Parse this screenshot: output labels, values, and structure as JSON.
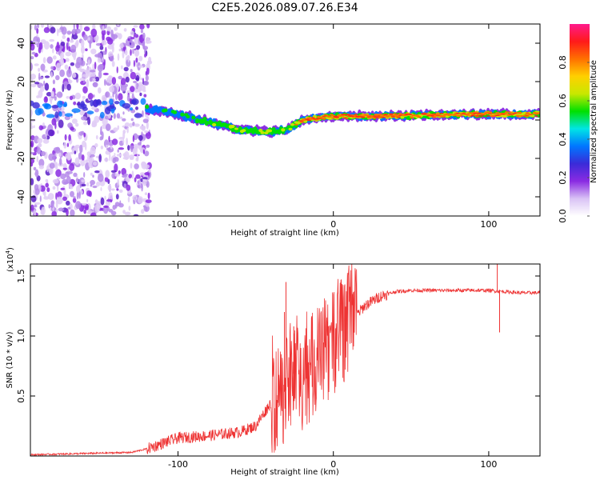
{
  "title": "C2E5.2026.089.07.26.E34",
  "chart_data": [
    {
      "type": "heatmap",
      "name": "spectrogram",
      "xlabel": "Height of straight line (km)",
      "ylabel": "Frequency (Hz)",
      "xlim": [
        -195,
        133
      ],
      "ylim": [
        -50,
        50
      ],
      "xticks": [
        -100,
        0,
        100
      ],
      "yticks": [
        -40,
        -20,
        0,
        20,
        40
      ],
      "xtick_labels": [
        "-100",
        "0",
        "100"
      ],
      "ytick_labels": [
        "-40",
        "-20",
        "0",
        "20",
        "40"
      ],
      "noise_region_x": [
        -195,
        -118
      ],
      "ridge": {
        "x": [
          -120,
          -100,
          -80,
          -60,
          -40,
          -30,
          -20,
          -10,
          0,
          10,
          30,
          60,
          90,
          110,
          133
        ],
        "y": [
          6,
          3,
          -1,
          -5,
          -6,
          -5,
          0,
          1,
          2,
          2,
          2,
          2.5,
          3,
          3,
          3
        ],
        "peak": [
          0.4,
          0.45,
          0.5,
          0.6,
          0.55,
          0.5,
          0.9,
          0.95,
          0.9,
          0.98,
          0.9,
          0.85,
          0.9,
          0.85,
          0.8
        ]
      },
      "colorbar": {
        "label": "Normalized spectral amplitude",
        "range": [
          0,
          1
        ],
        "ticks": [
          0.0,
          0.2,
          0.4,
          0.6,
          0.8
        ],
        "tick_labels": [
          "0.0",
          "0.2",
          "0.4",
          "0.6",
          "0.8"
        ],
        "colors": [
          "#ffffff",
          "#d9c2f5",
          "#8a2be2",
          "#3a2bd8",
          "#0077ff",
          "#00e5e5",
          "#00e000",
          "#c8e800",
          "#ffd000",
          "#ff7000",
          "#ff1a1a",
          "#ff1a8c"
        ]
      }
    },
    {
      "type": "line",
      "name": "snr",
      "xlabel": "Height of straight line (km)",
      "ylabel": "SNR (10 * v/v)",
      "multiplier": "(x10",
      "multiplier_exp": "4",
      "multiplier_close": ")",
      "xlim": [
        -195,
        133
      ],
      "ylim": [
        0,
        1.6
      ],
      "xticks": [
        -100,
        0,
        100
      ],
      "yticks": [
        0.5,
        1.0,
        1.5
      ],
      "xtick_labels": [
        "-100",
        "0",
        "100"
      ],
      "ytick_labels": [
        "0.5",
        "1.0",
        "1.5"
      ],
      "color": "#ee3333",
      "trend": {
        "x": [
          -195,
          -130,
          -120,
          -100,
          -80,
          -60,
          -50,
          -40,
          -30,
          -25,
          -20,
          -10,
          0,
          10,
          20,
          30,
          40,
          50,
          60,
          80,
          100,
          110,
          120,
          133
        ],
        "y": [
          0.01,
          0.03,
          0.06,
          0.15,
          0.17,
          0.2,
          0.25,
          0.45,
          0.55,
          0.7,
          0.65,
          0.8,
          0.95,
          1.1,
          1.25,
          1.33,
          1.37,
          1.38,
          1.38,
          1.38,
          1.38,
          1.37,
          1.36,
          1.36
        ]
      },
      "spikes": [
        {
          "x": -30.5,
          "y": 1.45
        },
        {
          "x": -25.5,
          "y": 1.08
        },
        {
          "x": -31.5,
          "y": 1.2
        },
        {
          "x": 105.5,
          "y": 1.6
        },
        {
          "x": 107,
          "y": 1.03
        }
      ]
    }
  ]
}
